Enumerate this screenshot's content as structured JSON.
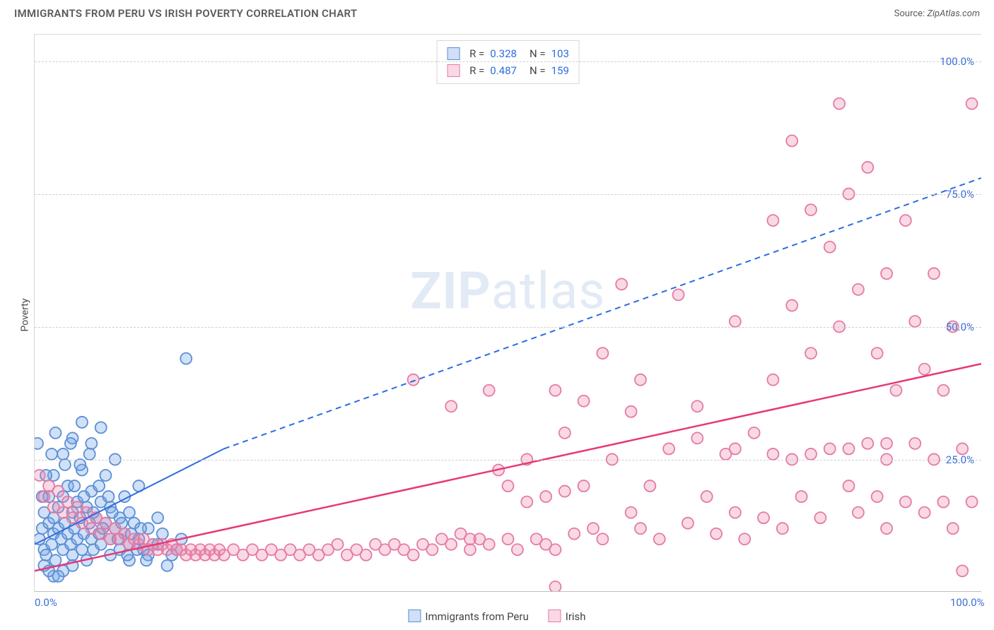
{
  "header": {
    "title": "IMMIGRANTS FROM PERU VS IRISH POVERTY CORRELATION CHART",
    "source_prefix": "Source: ",
    "source_name": "ZipAtlas.com"
  },
  "chart": {
    "type": "scatter",
    "ylabel": "Poverty",
    "xlim": [
      0,
      100
    ],
    "ylim": [
      0,
      105
    ],
    "xtick_labels": [
      "0.0%",
      "100.0%"
    ],
    "xtick_positions": [
      0,
      100
    ],
    "ytick_labels": [
      "25.0%",
      "50.0%",
      "75.0%",
      "100.0%"
    ],
    "ytick_positions": [
      25,
      50,
      75,
      100
    ],
    "grid_y": [
      25,
      50,
      75,
      100
    ],
    "grid_color": "#d0d0d0",
    "background_color": "#ffffff",
    "watermark": {
      "zip": "ZIP",
      "atlas": "atlas"
    },
    "marker_radius": 8,
    "marker_stroke_width": 1.8,
    "series": [
      {
        "name": "Immigrants from Peru",
        "fill": "rgba(120,165,230,0.35)",
        "stroke": "#5a8fd6",
        "trend": {
          "x1": 0,
          "y1": 9,
          "x2_solid": 20,
          "y2_solid": 27,
          "x2_dash": 100,
          "y2_dash": 78,
          "color": "#2d6cdf",
          "width": 2
        },
        "r": "0.328",
        "n": "103",
        "points": [
          [
            0.5,
            10
          ],
          [
            0.8,
            12
          ],
          [
            1,
            8
          ],
          [
            1,
            15
          ],
          [
            1.2,
            7
          ],
          [
            1.5,
            13
          ],
          [
            1.5,
            18
          ],
          [
            1.8,
            9
          ],
          [
            2,
            11
          ],
          [
            2,
            14
          ],
          [
            2,
            22
          ],
          [
            2.2,
            6
          ],
          [
            2.5,
            16
          ],
          [
            2.5,
            12
          ],
          [
            2.8,
            10
          ],
          [
            3,
            8
          ],
          [
            3,
            18
          ],
          [
            3,
            26
          ],
          [
            3.2,
            13
          ],
          [
            3.5,
            11
          ],
          [
            3.5,
            20
          ],
          [
            3.8,
            9
          ],
          [
            4,
            15
          ],
          [
            4,
            7
          ],
          [
            4,
            29
          ],
          [
            4.2,
            12
          ],
          [
            4.5,
            17
          ],
          [
            4.5,
            10
          ],
          [
            4.8,
            14
          ],
          [
            5,
            8
          ],
          [
            5,
            23
          ],
          [
            5,
            32
          ],
          [
            5.2,
            11
          ],
          [
            5.5,
            16
          ],
          [
            5.5,
            6
          ],
          [
            5.8,
            13
          ],
          [
            6,
            10
          ],
          [
            6,
            19
          ],
          [
            6,
            28
          ],
          [
            6.2,
            8
          ],
          [
            6.5,
            14
          ],
          [
            6.8,
            11
          ],
          [
            7,
            17
          ],
          [
            7,
            9
          ],
          [
            7,
            31
          ],
          [
            7.5,
            13
          ],
          [
            7.5,
            22
          ],
          [
            8,
            10
          ],
          [
            8,
            16
          ],
          [
            8,
            7
          ],
          [
            8.5,
            12
          ],
          [
            8.5,
            25
          ],
          [
            9,
            14
          ],
          [
            9,
            8
          ],
          [
            9.5,
            11
          ],
          [
            9.5,
            18
          ],
          [
            10,
            9
          ],
          [
            10,
            15
          ],
          [
            10,
            6
          ],
          [
            10.5,
            13
          ],
          [
            11,
            10
          ],
          [
            11,
            20
          ],
          [
            11.5,
            8
          ],
          [
            12,
            12
          ],
          [
            12,
            7
          ],
          [
            13,
            9
          ],
          [
            13,
            14
          ],
          [
            14,
            5
          ],
          [
            15,
            8
          ],
          [
            16,
            44
          ],
          [
            2,
            3
          ],
          [
            3,
            4
          ],
          [
            4,
            5
          ],
          [
            1,
            5
          ],
          [
            1.5,
            4
          ],
          [
            2.5,
            3
          ],
          [
            0.8,
            18
          ],
          [
            1.2,
            22
          ],
          [
            1.8,
            26
          ],
          [
            2.2,
            30
          ],
          [
            3.2,
            24
          ],
          [
            3.8,
            28
          ],
          [
            4.2,
            20
          ],
          [
            4.8,
            24
          ],
          [
            5.2,
            18
          ],
          [
            5.8,
            26
          ],
          [
            6.2,
            15
          ],
          [
            6.8,
            20
          ],
          [
            7.2,
            12
          ],
          [
            7.8,
            18
          ],
          [
            8.2,
            15
          ],
          [
            8.8,
            10
          ],
          [
            9.2,
            13
          ],
          [
            9.8,
            7
          ],
          [
            10.2,
            11
          ],
          [
            10.8,
            8
          ],
          [
            11.2,
            12
          ],
          [
            11.8,
            6
          ],
          [
            12.5,
            9
          ],
          [
            13.5,
            11
          ],
          [
            14.5,
            7
          ],
          [
            15.5,
            10
          ],
          [
            0.3,
            28
          ]
        ]
      },
      {
        "name": "Irish",
        "fill": "rgba(235,130,170,0.30)",
        "stroke": "#e57ba3",
        "trend": {
          "x1": 0,
          "y1": 4,
          "x2_solid": 100,
          "y2_solid": 43,
          "color": "#e73878",
          "width": 2.5
        },
        "r": "0.487",
        "n": "159",
        "points": [
          [
            0.5,
            22
          ],
          [
            1,
            18
          ],
          [
            1.5,
            20
          ],
          [
            2,
            16
          ],
          [
            2.5,
            19
          ],
          [
            3,
            15
          ],
          [
            3.5,
            17
          ],
          [
            4,
            14
          ],
          [
            4.5,
            16
          ],
          [
            5,
            13
          ],
          [
            5.5,
            15
          ],
          [
            6,
            12
          ],
          [
            6.5,
            14
          ],
          [
            7,
            11
          ],
          [
            7.5,
            13
          ],
          [
            8,
            10
          ],
          [
            8.5,
            12
          ],
          [
            9,
            10
          ],
          [
            9.5,
            11
          ],
          [
            10,
            9
          ],
          [
            10.5,
            10
          ],
          [
            11,
            9
          ],
          [
            11.5,
            10
          ],
          [
            12,
            8
          ],
          [
            12.5,
            9
          ],
          [
            13,
            8
          ],
          [
            13.5,
            9
          ],
          [
            14,
            8
          ],
          [
            14.5,
            9
          ],
          [
            15,
            8
          ],
          [
            15.5,
            8
          ],
          [
            16,
            7
          ],
          [
            16.5,
            8
          ],
          [
            17,
            7
          ],
          [
            17.5,
            8
          ],
          [
            18,
            7
          ],
          [
            18.5,
            8
          ],
          [
            19,
            7
          ],
          [
            19.5,
            8
          ],
          [
            20,
            7
          ],
          [
            21,
            8
          ],
          [
            22,
            7
          ],
          [
            23,
            8
          ],
          [
            24,
            7
          ],
          [
            25,
            8
          ],
          [
            26,
            7
          ],
          [
            27,
            8
          ],
          [
            28,
            7
          ],
          [
            29,
            8
          ],
          [
            30,
            7
          ],
          [
            31,
            8
          ],
          [
            32,
            9
          ],
          [
            33,
            7
          ],
          [
            34,
            8
          ],
          [
            35,
            7
          ],
          [
            36,
            9
          ],
          [
            37,
            8
          ],
          [
            38,
            9
          ],
          [
            39,
            8
          ],
          [
            40,
            7
          ],
          [
            41,
            9
          ],
          [
            42,
            8
          ],
          [
            43,
            10
          ],
          [
            44,
            9
          ],
          [
            45,
            11
          ],
          [
            46,
            8
          ],
          [
            47,
            10
          ],
          [
            48,
            9
          ],
          [
            49,
            23
          ],
          [
            50,
            20
          ],
          [
            51,
            8
          ],
          [
            52,
            17
          ],
          [
            53,
            10
          ],
          [
            54,
            9
          ],
          [
            55,
            38
          ],
          [
            56,
            19
          ],
          [
            57,
            11
          ],
          [
            55,
            8
          ],
          [
            58,
            36
          ],
          [
            59,
            12
          ],
          [
            60,
            10
          ],
          [
            61,
            25
          ],
          [
            62,
            58
          ],
          [
            63,
            15
          ],
          [
            63,
            34
          ],
          [
            64,
            12
          ],
          [
            65,
            20
          ],
          [
            66,
            10
          ],
          [
            67,
            27
          ],
          [
            68,
            56
          ],
          [
            69,
            13
          ],
          [
            70,
            35
          ],
          [
            55,
            1
          ],
          [
            71,
            18
          ],
          [
            72,
            11
          ],
          [
            73,
            26
          ],
          [
            74,
            15
          ],
          [
            74,
            51
          ],
          [
            75,
            10
          ],
          [
            76,
            30
          ],
          [
            77,
            14
          ],
          [
            78,
            40
          ],
          [
            78,
            70
          ],
          [
            79,
            12
          ],
          [
            80,
            25
          ],
          [
            80,
            54
          ],
          [
            80,
            85
          ],
          [
            81,
            18
          ],
          [
            82,
            45
          ],
          [
            82,
            72
          ],
          [
            83,
            14
          ],
          [
            84,
            27
          ],
          [
            84,
            65
          ],
          [
            85,
            92
          ],
          [
            85,
            50
          ],
          [
            86,
            20
          ],
          [
            86,
            75
          ],
          [
            87,
            15
          ],
          [
            87,
            57
          ],
          [
            88,
            28
          ],
          [
            88,
            80
          ],
          [
            89,
            18
          ],
          [
            89,
            45
          ],
          [
            90,
            12
          ],
          [
            90,
            60
          ],
          [
            90,
            25
          ],
          [
            91,
            38
          ],
          [
            92,
            17
          ],
          [
            92,
            70
          ],
          [
            93,
            28
          ],
          [
            93,
            51
          ],
          [
            94,
            15
          ],
          [
            94,
            42
          ],
          [
            95,
            60
          ],
          [
            95,
            25
          ],
          [
            96,
            17
          ],
          [
            96,
            38
          ],
          [
            97,
            50
          ],
          [
            97,
            12
          ],
          [
            98,
            27
          ],
          [
            98,
            4
          ],
          [
            99,
            17
          ],
          [
            99,
            92
          ],
          [
            40,
            40
          ],
          [
            44,
            35
          ],
          [
            48,
            38
          ],
          [
            52,
            25
          ],
          [
            56,
            30
          ],
          [
            60,
            45
          ],
          [
            64,
            40
          ],
          [
            70,
            29
          ],
          [
            74,
            27
          ],
          [
            78,
            26
          ],
          [
            82,
            26
          ],
          [
            86,
            27
          ],
          [
            90,
            28
          ],
          [
            46,
            10
          ],
          [
            50,
            10
          ],
          [
            54,
            18
          ],
          [
            58,
            20
          ]
        ]
      }
    ],
    "bottom_legend": [
      {
        "label": "Immigrants from Peru",
        "fill": "rgba(120,165,230,0.35)",
        "stroke": "#5a8fd6"
      },
      {
        "label": "Irish",
        "fill": "rgba(235,130,170,0.30)",
        "stroke": "#e57ba3"
      }
    ]
  }
}
